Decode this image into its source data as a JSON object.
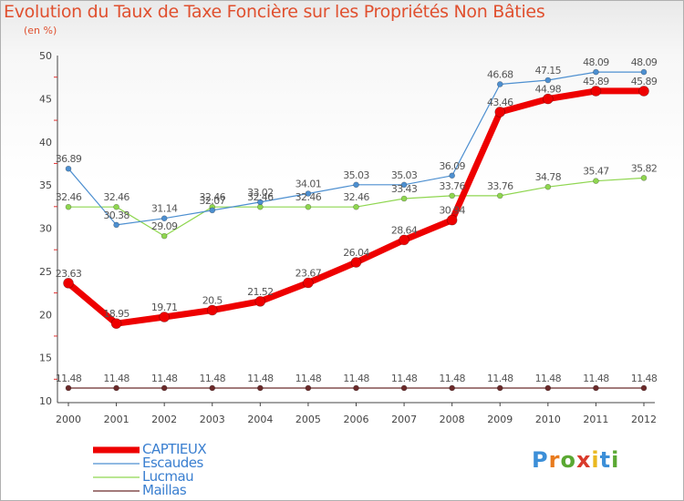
{
  "title": "Evolution du Taux de Taxe Foncière sur les Propriétés Non Bâties",
  "unit": "(en %)",
  "logo": {
    "letters": [
      "P",
      "r",
      "o",
      "x",
      "i",
      "t",
      "i"
    ],
    "colors": [
      "#3c8fd8",
      "#e87b1e",
      "#5aa832",
      "#d93a2b",
      "#e9b81f",
      "#3c8fd8",
      "#5aa832"
    ]
  },
  "chart_data": {
    "type": "line",
    "title": "Evolution du Taux de Taxe Foncière sur les Propriétés Non Bâties",
    "ylabel": "(en %)",
    "xlabel": "",
    "categories": [
      "2000",
      "2001",
      "2002",
      "2003",
      "2004",
      "2005",
      "2006",
      "2007",
      "2008",
      "2009",
      "2010",
      "2011",
      "2012"
    ],
    "ylim": [
      10,
      50
    ],
    "yticks": [
      "10",
      "15",
      "20",
      "25",
      "30",
      "35",
      "40",
      "45",
      "50"
    ],
    "series": [
      {
        "name": "CAPTIEUX",
        "color": "#ee0000",
        "values": [
          23.63,
          18.95,
          19.71,
          20.5,
          21.52,
          23.67,
          26.04,
          28.64,
          30.94,
          43.46,
          44.98,
          45.89,
          45.89
        ],
        "labels": [
          "23.63",
          "18.95",
          "19.71",
          "20.5",
          "21.52",
          "23.67",
          "26.04",
          "28.64",
          "30.94",
          "43.46",
          "44.98",
          "45.89",
          "45.89"
        ]
      },
      {
        "name": "Escaudes",
        "color": "#4d8fd0",
        "values": [
          36.89,
          30.38,
          31.14,
          32.07,
          33.02,
          34.01,
          35.03,
          35.03,
          36.09,
          46.68,
          47.15,
          48.09,
          48.09
        ],
        "labels": [
          "36.89",
          "30.38",
          "31.14",
          "32.07",
          "33.02",
          "34.01",
          "35.03",
          "35.03",
          "36.09",
          "46.68",
          "47.15",
          "48.09",
          "48.09"
        ]
      },
      {
        "name": "Lucmau",
        "color": "#8fd650",
        "values": [
          32.46,
          32.46,
          29.09,
          32.46,
          32.46,
          32.46,
          32.46,
          33.43,
          33.76,
          33.76,
          34.78,
          35.47,
          35.82
        ],
        "labels": [
          "32.46",
          "32.46",
          "29.09",
          "32.46",
          "32.46",
          "32.46",
          "32.46",
          "33.43",
          "33.76",
          "33.76",
          "34.78",
          "35.47",
          "35.82"
        ]
      },
      {
        "name": "Maillas",
        "color": "#6b2a2a",
        "values": [
          11.48,
          11.48,
          11.48,
          11.48,
          11.48,
          11.48,
          11.48,
          11.48,
          11.48,
          11.48,
          11.48,
          11.48,
          11.48
        ],
        "labels": [
          "11.48",
          "11.48",
          "11.48",
          "11.48",
          "11.48",
          "11.48",
          "11.48",
          "11.48",
          "11.48",
          "11.48",
          "11.48",
          "11.48",
          "11.48"
        ]
      }
    ],
    "legend": [
      "CAPTIEUX",
      "Escaudes",
      "Lucmau",
      "Maillas"
    ],
    "legend_position": "bottom-left",
    "grid": false
  }
}
